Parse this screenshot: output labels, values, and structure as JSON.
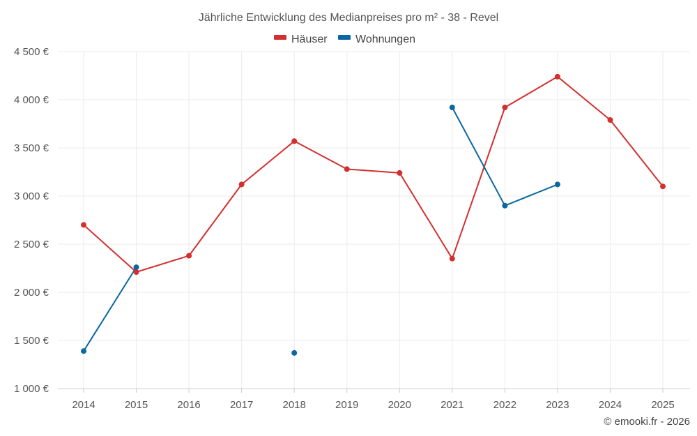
{
  "chart_data": {
    "type": "line",
    "title": "Jährliche Entwicklung des Medianpreises pro m² - 38 - Revel",
    "categories": [
      "2014",
      "2015",
      "2016",
      "2017",
      "2018",
      "2019",
      "2020",
      "2021",
      "2022",
      "2023",
      "2024",
      "2025"
    ],
    "y_ticks": [
      "1 000 €",
      "1 500 €",
      "2 000 €",
      "2 500 €",
      "3 000 €",
      "3 500 €",
      "4 000 €",
      "4 500 €"
    ],
    "ylim": [
      1000,
      4500
    ],
    "ystep": 500,
    "grid": true,
    "legend_position": "top-center",
    "series": [
      {
        "name": "Häuser",
        "color": "#d32f2f",
        "values": [
          2700,
          2210,
          2380,
          3120,
          3570,
          3280,
          3240,
          2350,
          3920,
          4240,
          3790,
          3100
        ]
      },
      {
        "name": "Wohnungen",
        "color": "#0a67a0",
        "values": [
          1390,
          2260,
          null,
          null,
          1370,
          null,
          null,
          3920,
          2900,
          3120,
          null,
          null
        ]
      }
    ],
    "credit": "© emooki.fr - 2026"
  }
}
